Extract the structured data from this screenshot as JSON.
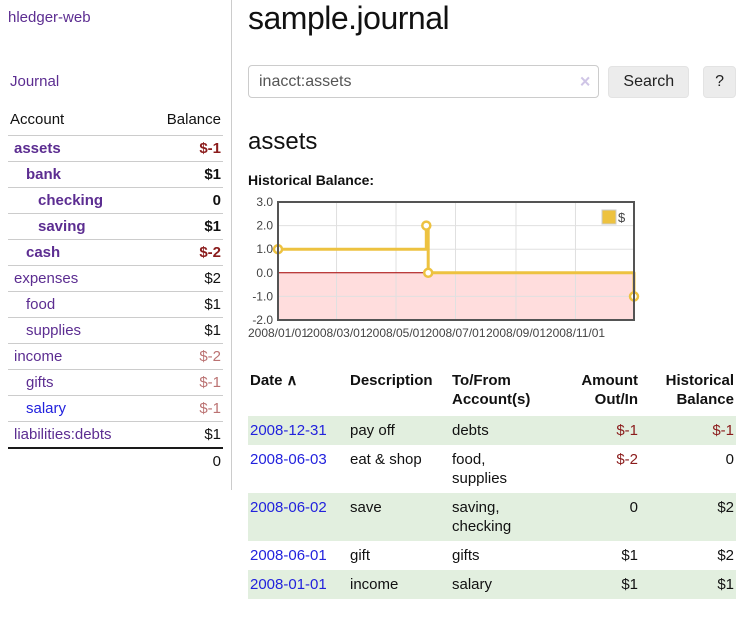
{
  "app": {
    "title": "hledger-web"
  },
  "sidebar": {
    "journal_label": "Journal",
    "account_header": "Account",
    "balance_header": "Balance",
    "accounts": [
      {
        "name": "assets",
        "balance": "$-1",
        "indent_class": "d0",
        "name_class": "v b",
        "bal_class": "neg2 b"
      },
      {
        "name": "bank",
        "balance": "$1",
        "indent_class": "d1",
        "name_class": "v b",
        "bal_class": "b"
      },
      {
        "name": "checking",
        "balance": "0",
        "indent_class": "d2",
        "name_class": "v b",
        "bal_class": "b"
      },
      {
        "name": "saving",
        "balance": "$1",
        "indent_class": "d2",
        "name_class": "v b",
        "bal_class": "b"
      },
      {
        "name": "cash",
        "balance": "$-2",
        "indent_class": "d1",
        "name_class": "v b",
        "bal_class": "neg2 b"
      },
      {
        "name": "expenses",
        "balance": "$2",
        "indent_class": "d0",
        "name_class": "v",
        "bal_class": ""
      },
      {
        "name": "food",
        "balance": "$1",
        "indent_class": "d1",
        "name_class": "v",
        "bal_class": ""
      },
      {
        "name": "supplies",
        "balance": "$1",
        "indent_class": "d1",
        "name_class": "v",
        "bal_class": ""
      },
      {
        "name": "income",
        "balance": "$-2",
        "indent_class": "d0",
        "name_class": "v",
        "bal_class": "neg1"
      },
      {
        "name": "gifts",
        "balance": "$-1",
        "indent_class": "d1",
        "name_class": "v",
        "bal_class": "neg1"
      },
      {
        "name": "salary",
        "balance": "$-1",
        "indent_class": "d1",
        "name_class": "u",
        "bal_class": "neg1"
      },
      {
        "name": "liabilities:debts",
        "balance": "$1",
        "indent_class": "d0",
        "name_class": "v",
        "bal_class": ""
      }
    ],
    "total_balance": "0"
  },
  "main": {
    "title": "sample.journal",
    "search": {
      "value": "inacct:assets",
      "clear_icon": "×",
      "button_label": "Search",
      "help_label": "?"
    },
    "account_heading": "assets",
    "chart_label": "Historical Balance:"
  },
  "register": {
    "headers": {
      "date": "Date",
      "sort_icon": "∧",
      "description": "Description",
      "tofrom_line1": "To/From",
      "tofrom_line2": "Account(s)",
      "amount_line1": "Amount",
      "amount_line2": "Out/In",
      "hist_line1": "Historical",
      "hist_line2": "Balance"
    },
    "rows": [
      {
        "date": "2008-12-31",
        "description": "pay off",
        "accounts": "debts",
        "amount": "$-1",
        "balance": "$-1",
        "row_class": "stripe",
        "amount_class": "neg",
        "balance_class": "neg"
      },
      {
        "date": "2008-06-03",
        "description": "eat & shop",
        "accounts": "food, supplies",
        "amount": "$-2",
        "balance": "0",
        "row_class": "",
        "amount_class": "neg",
        "balance_class": ""
      },
      {
        "date": "2008-06-02",
        "description": "save",
        "accounts": "saving, checking",
        "amount": "0",
        "balance": "$2",
        "row_class": "stripe",
        "amount_class": "",
        "balance_class": ""
      },
      {
        "date": "2008-06-01",
        "description": "gift",
        "accounts": "gifts",
        "amount": "$1",
        "balance": "$2",
        "row_class": "",
        "amount_class": "",
        "balance_class": ""
      },
      {
        "date": "2008-01-01",
        "description": "income",
        "accounts": "salary",
        "amount": "$1",
        "balance": "$1",
        "row_class": "stripe",
        "amount_class": "",
        "balance_class": ""
      }
    ]
  },
  "chart_data": {
    "type": "line",
    "step": true,
    "title": "Historical Balance",
    "series": [
      {
        "name": "$",
        "color": "#edc240",
        "points": [
          [
            "2008-01-01",
            1
          ],
          [
            "2008-06-01",
            2
          ],
          [
            "2008-06-03",
            0
          ],
          [
            "2008-12-31",
            -1
          ]
        ]
      }
    ],
    "x_range": [
      "2008-01-01",
      "2008-12-31"
    ],
    "x_ticks": [
      {
        "date": "2008-01-01",
        "label": "2008/01/01"
      },
      {
        "date": "2008-03-01",
        "label": "2008/03/01"
      },
      {
        "date": "2008-05-01",
        "label": "2008/05/01"
      },
      {
        "date": "2008-07-01",
        "label": "2008/07/01"
      },
      {
        "date": "2008-09-01",
        "label": "2008/09/01"
      },
      {
        "date": "2008-11-01",
        "label": "2008/11/01"
      }
    ],
    "y_ticks": [
      {
        "value": 3,
        "label": "3.0"
      },
      {
        "value": 2,
        "label": "2.0"
      },
      {
        "value": 1,
        "label": "1.0"
      },
      {
        "value": 0,
        "label": "0.0"
      },
      {
        "value": -1,
        "label": "-1.0"
      },
      {
        "value": -2,
        "label": "-2.0"
      }
    ],
    "ylim": [
      -2,
      3
    ],
    "grid": true,
    "grid_color": "#e0e0e0",
    "border_color": "#545454",
    "tick_color": "#444444",
    "zero_line_color": "#aa0000",
    "negative_region_color": "#ffdddd",
    "legend_position": "top-right",
    "legend": {
      "swatch_color": "#edc240",
      "label": "$"
    }
  },
  "colors": {
    "accent_purple": "#5c2d91",
    "link_blue": "#2222dd",
    "negative_strong": "#8b1c1c",
    "negative_soft": "#bb7272",
    "row_stripe_green": "#e2efdf",
    "chart_line_gold": "#edc240",
    "chart_negative_fill": "#ffdddd",
    "chart_zero_line": "#aa0000"
  }
}
